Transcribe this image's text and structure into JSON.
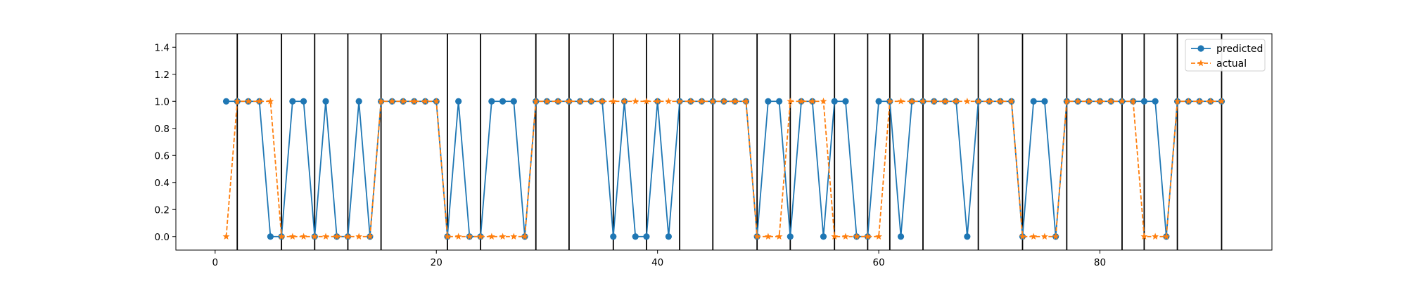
{
  "chart_data": {
    "type": "line",
    "title": "",
    "xlabel": "",
    "ylabel": "",
    "xlim": [
      -3.55,
      95.55
    ],
    "ylim": [
      -0.1,
      1.5
    ],
    "xticks": [
      0,
      20,
      40,
      60,
      80
    ],
    "yticks": [
      0.0,
      0.2,
      0.4,
      0.6,
      0.8,
      1.0,
      1.2,
      1.4
    ],
    "ytick_labels": [
      "0.0",
      "0.2",
      "0.4",
      "0.6",
      "0.8",
      "1.0",
      "1.2",
      "1.4"
    ],
    "legend_position": "top-right",
    "x": [
      1,
      2,
      3,
      4,
      5,
      6,
      7,
      8,
      9,
      10,
      11,
      12,
      13,
      14,
      15,
      16,
      17,
      18,
      19,
      20,
      21,
      22,
      23,
      24,
      25,
      26,
      27,
      28,
      29,
      30,
      31,
      32,
      33,
      34,
      35,
      36,
      37,
      38,
      39,
      40,
      41,
      42,
      43,
      44,
      45,
      46,
      47,
      48,
      49,
      50,
      51,
      52,
      53,
      54,
      55,
      56,
      57,
      58,
      59,
      60,
      61,
      62,
      63,
      64,
      65,
      66,
      67,
      68,
      69,
      70,
      71,
      72,
      73,
      74,
      75,
      76,
      77,
      78,
      79,
      80,
      81,
      82,
      83,
      84,
      85,
      86,
      87,
      88,
      89,
      90,
      91
    ],
    "series": [
      {
        "name": "predicted",
        "color": "#1f77b4",
        "marker": "circle",
        "linestyle": "solid",
        "values": [
          1,
          1,
          1,
          1,
          0,
          0,
          1,
          1,
          0,
          1,
          0,
          0,
          1,
          0,
          1,
          1,
          1,
          1,
          1,
          1,
          0,
          1,
          0,
          0,
          1,
          1,
          1,
          0,
          1,
          1,
          1,
          1,
          1,
          1,
          1,
          0,
          1,
          0,
          0,
          1,
          0,
          1,
          1,
          1,
          1,
          1,
          1,
          1,
          0,
          1,
          1,
          0,
          1,
          1,
          0,
          1,
          1,
          0,
          0,
          1,
          1,
          0,
          1,
          1,
          1,
          1,
          1,
          0,
          1,
          1,
          1,
          1,
          0,
          1,
          1,
          0,
          1,
          1,
          1,
          1,
          1,
          1,
          1,
          1,
          1,
          0,
          1,
          1,
          1,
          1,
          1
        ]
      },
      {
        "name": "actual",
        "color": "#ff7f0e",
        "marker": "star",
        "linestyle": "dashed",
        "values": [
          0,
          1,
          1,
          1,
          1,
          0,
          0,
          0,
          0,
          0,
          0,
          0,
          0,
          0,
          1,
          1,
          1,
          1,
          1,
          1,
          0,
          0,
          0,
          0,
          0,
          0,
          0,
          0,
          1,
          1,
          1,
          1,
          1,
          1,
          1,
          1,
          1,
          1,
          1,
          1,
          1,
          1,
          1,
          1,
          1,
          1,
          1,
          1,
          0,
          0,
          0,
          1,
          1,
          1,
          1,
          0,
          0,
          0,
          0,
          0,
          1,
          1,
          1,
          1,
          1,
          1,
          1,
          1,
          1,
          1,
          1,
          1,
          0,
          0,
          0,
          0,
          1,
          1,
          1,
          1,
          1,
          1,
          1,
          0,
          0,
          0,
          1,
          1,
          1,
          1,
          1
        ]
      }
    ],
    "vertical_lines": [
      2,
      6,
      9,
      12,
      15,
      21,
      24,
      29,
      32,
      36,
      39,
      42,
      45,
      49,
      52,
      56,
      59,
      61,
      64,
      69,
      73,
      77,
      82,
      84,
      87,
      91
    ]
  }
}
